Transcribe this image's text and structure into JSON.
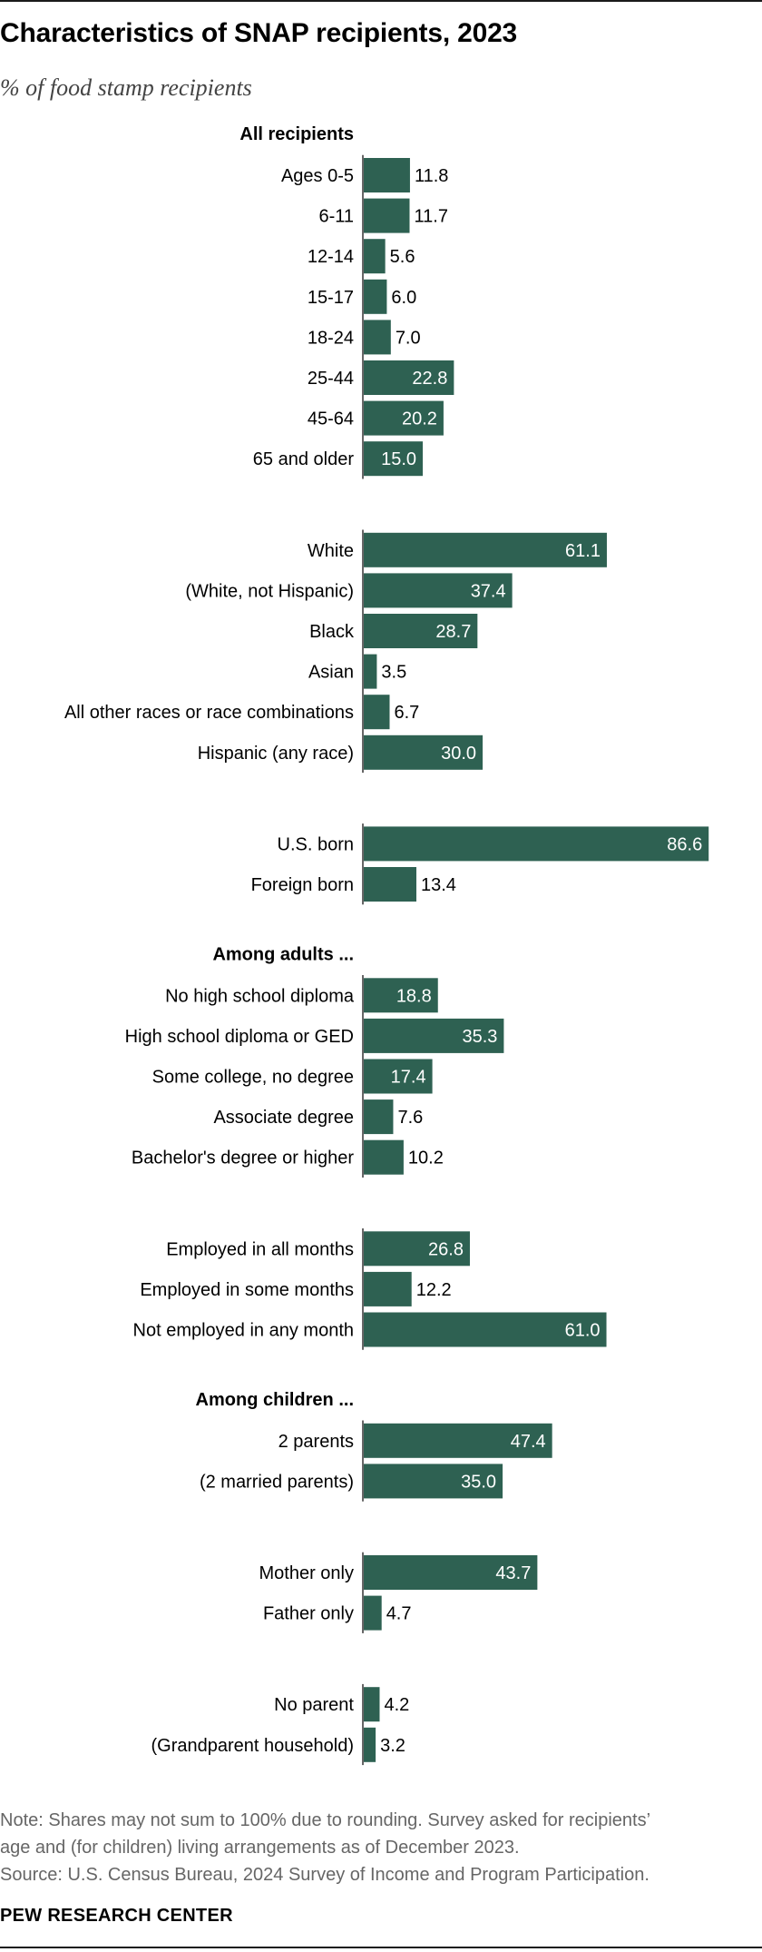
{
  "title": "Characteristics of SNAP recipients, 2023",
  "subtitle": "% of food stamp recipients",
  "note": "Note: Shares may not sum to 100% due to rounding. Survey asked for recipients’",
  "note_cont": "age and (for children) living arrangements as of December 2023.",
  "source": "Source: U.S. Census Bureau, 2024 Survey of Income and Program Participation.",
  "brand": "PEW RESEARCH CENTER",
  "colors": {
    "bar": "#2e6152",
    "axis": "#666666"
  },
  "chart_data": {
    "type": "bar",
    "orientation": "horizontal",
    "xlim": [
      0,
      100
    ],
    "groups": [
      {
        "header": "All recipients",
        "categories": [
          "Ages 0-5",
          "6-11",
          "12-14",
          "15-17",
          "18-24",
          "25-44",
          "45-64",
          "65 and older"
        ],
        "values": [
          11.8,
          11.7,
          5.6,
          6.0,
          7.0,
          22.8,
          20.2,
          15.0
        ]
      },
      {
        "header": "",
        "categories": [
          "White",
          "(White, not Hispanic)",
          "Black",
          "Asian",
          "All other races or race combinations",
          "Hispanic (any race)"
        ],
        "values": [
          61.1,
          37.4,
          28.7,
          3.5,
          6.7,
          30.0
        ]
      },
      {
        "header": "",
        "categories": [
          "U.S. born",
          "Foreign born"
        ],
        "values": [
          86.6,
          13.4
        ]
      },
      {
        "header": "Among adults ...",
        "categories": [
          "No high school diploma",
          "High school diploma or GED",
          "Some college, no degree",
          "Associate degree",
          "Bachelor's degree or higher"
        ],
        "values": [
          18.8,
          35.3,
          17.4,
          7.6,
          10.2
        ]
      },
      {
        "header": "",
        "categories": [
          "Employed in all months",
          "Employed in some months",
          "Not employed in any month"
        ],
        "values": [
          26.8,
          12.2,
          61.0
        ]
      },
      {
        "header": "Among children ...",
        "categories": [
          "2 parents",
          "(2 married parents)"
        ],
        "values": [
          47.4,
          35.0
        ]
      },
      {
        "header": "",
        "categories": [
          "Mother only",
          "Father only"
        ],
        "values": [
          43.7,
          4.7
        ]
      },
      {
        "header": "",
        "categories": [
          "No parent",
          "(Grandparent household)"
        ],
        "values": [
          4.2,
          3.2
        ]
      }
    ]
  }
}
